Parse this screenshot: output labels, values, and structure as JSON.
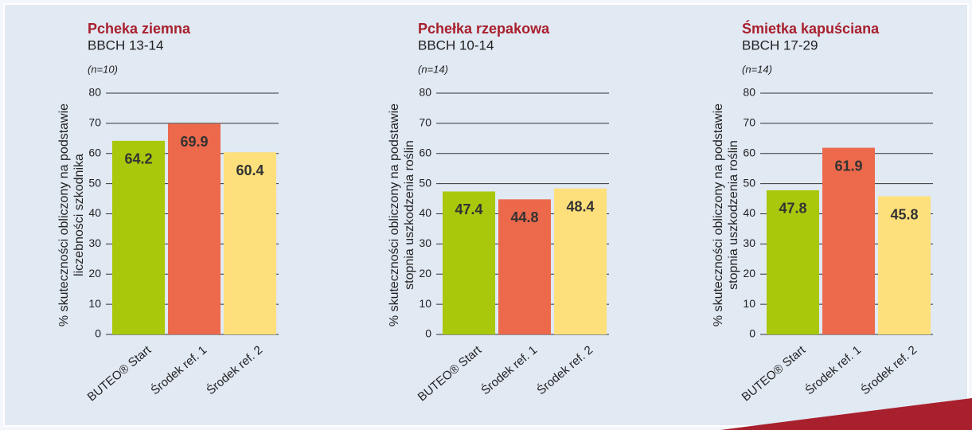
{
  "chart_data": [
    {
      "type": "bar",
      "title": "Pcheka ziemna",
      "subtitle": "BBCH 13-14",
      "annotation": "(n=10)",
      "ylabel": [
        "% skuteczności obliczony na podstawie",
        "liczebności szkodnika"
      ],
      "categories": [
        "BUTEO® Start",
        "Środek ref. 1",
        "Środek ref. 2"
      ],
      "values": [
        64.2,
        69.9,
        60.4
      ],
      "colors": [
        "#a9c70b",
        "#ec694b",
        "#fde07b"
      ],
      "ylim": [
        0,
        80
      ],
      "yticks": [
        0,
        10,
        20,
        30,
        40,
        50,
        60,
        70,
        80
      ],
      "grid": true
    },
    {
      "type": "bar",
      "title": "Pchełka rzepakowa",
      "subtitle": "BBCH 10-14",
      "annotation": "(n=14)",
      "ylabel": [
        "% skuteczności obliczony na podstawie",
        "stopnia uszkodzenia roślin"
      ],
      "categories": [
        "BUTEO® Start",
        "Środek ref. 1",
        "Środek ref. 2"
      ],
      "values": [
        47.4,
        44.8,
        48.4
      ],
      "colors": [
        "#a9c70b",
        "#ec694b",
        "#fde07b"
      ],
      "ylim": [
        0,
        80
      ],
      "yticks": [
        0,
        10,
        20,
        30,
        40,
        50,
        60,
        70,
        80
      ],
      "grid": true
    },
    {
      "type": "bar",
      "title": "Śmietka kapuściana",
      "subtitle": "BBCH 17-29",
      "annotation": "(n=14)",
      "ylabel": [
        "% skuteczności obliczony na podstawie",
        "stopnia uszkodzenia roślin"
      ],
      "categories": [
        "BUTEO® Start",
        "Środek ref. 1",
        "Środek ref. 2"
      ],
      "values": [
        47.8,
        61.9,
        45.8
      ],
      "colors": [
        "#a9c70b",
        "#ec694b",
        "#fde07b"
      ],
      "ylim": [
        0,
        80
      ],
      "yticks": [
        0,
        10,
        20,
        30,
        40,
        50,
        60,
        70,
        80
      ],
      "grid": true
    }
  ]
}
